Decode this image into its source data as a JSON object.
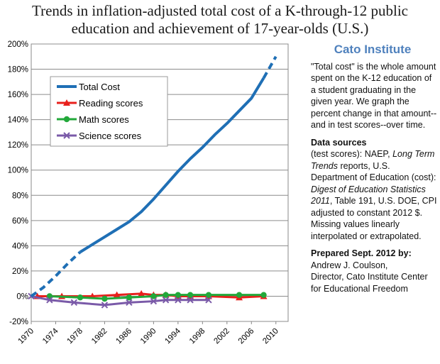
{
  "chart_data": {
    "type": "line",
    "title_lines": [
      "Trends in inflation-adjusted total cost of a K-through-12 public",
      "education and achievement of 17-year-olds  (U.S.)"
    ],
    "xlim": [
      1970,
      2012
    ],
    "ylim": [
      -20,
      200
    ],
    "x_ticks": [
      "1970",
      "1974",
      "1978",
      "1982",
      "1986",
      "1990",
      "1994",
      "1998",
      "2002",
      "2006",
      "2010"
    ],
    "y_ticks": [
      "-20%",
      "0%",
      "20%",
      "40%",
      "60%",
      "80%",
      "100%",
      "120%",
      "140%",
      "160%",
      "180%",
      "200%"
    ],
    "grid": "horizontal",
    "legend_position": "upper-left",
    "series": [
      {
        "name": "Total Cost",
        "color": "#1f6fb5",
        "marker": "none",
        "x": [
          1970,
          1972,
          1974,
          1976,
          1978,
          1980,
          1982,
          1984,
          1986,
          1988,
          1990,
          1992,
          1994,
          1996,
          1998,
          2000,
          2002,
          2004,
          2006,
          2008,
          2010
        ],
        "values": [
          0,
          7,
          16,
          26,
          35,
          41,
          47,
          53,
          59,
          67,
          77,
          88,
          99,
          109,
          118,
          128,
          137,
          147,
          157,
          173,
          190
        ],
        "dashed_from": 2008
      },
      {
        "name": "Reading scores",
        "color": "#e8201c",
        "marker": "triangle",
        "x": [
          1971,
          1975,
          1980,
          1984,
          1988,
          1990,
          1992,
          1994,
          1996,
          1999,
          2004,
          2008
        ],
        "values": [
          0,
          0,
          0,
          1,
          2,
          1,
          1,
          0,
          0,
          0,
          -1,
          0
        ]
      },
      {
        "name": "Math scores",
        "color": "#22a83a",
        "marker": "circle",
        "x": [
          1973,
          1978,
          1982,
          1986,
          1990,
          1992,
          1994,
          1996,
          1999,
          2004,
          2008
        ],
        "values": [
          0,
          -1,
          -2,
          -1,
          0,
          1,
          1,
          1,
          1,
          1,
          1
        ]
      },
      {
        "name": "Science scores",
        "color": "#7a5aa8",
        "marker": "x",
        "x": [
          1970,
          1973,
          1977,
          1982,
          1986,
          1990,
          1992,
          1994,
          1996,
          1999
        ],
        "values": [
          0,
          -3,
          -5,
          -7,
          -5,
          -4,
          -3,
          -3,
          -3,
          -3
        ]
      }
    ]
  },
  "sidebar": {
    "org": "Cato Institute",
    "desc": "\"Total cost\" is the whole amount spent on the K-12 education of a student graduating in the given year. We graph the percent change in that amount--and in test scores--over time.",
    "sources_label": "Data sources",
    "src_a": " (test scores): NAEP, ",
    "src_b": "Long Term Trends",
    "src_c": " reports, U.S. Department of Education (cost): ",
    "src_d": "Digest of Education Statistics 2011",
    "src_e": ", Table 191, U.S. DOE, CPI adjusted to constant 2012 $.  Missing values linearly interpolated or extrapolated.",
    "prepared_label": "Prepared Sept. 2012 by:",
    "prepared_name": "Andrew J. Coulson,",
    "prepared_role": "Director, Cato Institute Center for Educational Freedom"
  }
}
